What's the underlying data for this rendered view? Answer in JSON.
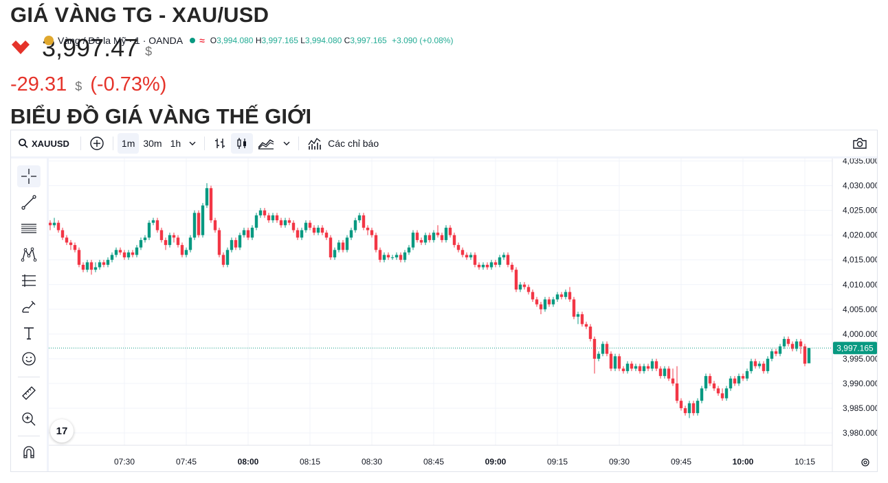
{
  "header": {
    "title": "GIÁ VÀNG TG - XAU/USD",
    "price": "3,997.47",
    "price_unit": "$",
    "change": "-29.31",
    "change_unit": "$",
    "change_pct": "(-0.73%)",
    "section_title": "BIỂU ĐỒ GIÁ VÀNG THẾ GIỚI"
  },
  "toolbar": {
    "symbol": "XAUUSD",
    "intervals": [
      "1m",
      "30m",
      "1h"
    ],
    "active_interval": "1m",
    "indicators_label": "Các chỉ báo"
  },
  "legend": {
    "name": "Vàng / Đô la Mỹ · 1 · OANDA",
    "o_label": "O",
    "o": "3,994.080",
    "h_label": "H",
    "h": "3,997.165",
    "l_label": "L",
    "l": "3,994.080",
    "c_label": "C",
    "c": "3,997.165",
    "change": "+3.090 (+0.08%)"
  },
  "colors": {
    "up": "#089981",
    "down": "#f23645",
    "accent": "#2962ff"
  },
  "chart_data": {
    "type": "candlestick",
    "interval": "1m",
    "x_start": "07:12",
    "x_tick_labels": [
      "07:30",
      "07:45",
      "08:00",
      "08:15",
      "08:30",
      "08:45",
      "09:00",
      "09:15",
      "09:30",
      "09:45",
      "10:00",
      "10:15"
    ],
    "y_tick_labels": [
      "4,035.000",
      "4,030.000",
      "4,025.000",
      "4,020.000",
      "4,015.000",
      "4,010.000",
      "4,005.000",
      "4,000.000",
      "3,995.000",
      "3,990.000",
      "3,985.000",
      "3,980.000"
    ],
    "ylim": [
      3977.5,
      4035.5
    ],
    "last_price": 3997.165,
    "last_price_label": "3,997.165",
    "candles": [
      [
        4022.5,
        4022.0,
        4023.0,
        4021.0
      ],
      [
        4022.0,
        4022.5,
        4023.5,
        4021.5
      ],
      [
        4022.5,
        4021.0,
        4023.0,
        4020.5
      ],
      [
        4021.0,
        4019.5,
        4021.5,
        4019.0
      ],
      [
        4019.5,
        4018.5,
        4020.0,
        4018.0
      ],
      [
        4018.5,
        4018.0,
        4019.0,
        4017.0
      ],
      [
        4018.0,
        4017.0,
        4018.5,
        4016.5
      ],
      [
        4017.0,
        4014.0,
        4017.5,
        4013.5
      ],
      [
        4014.0,
        4013.0,
        4014.5,
        4012.5
      ],
      [
        4013.0,
        4014.5,
        4015.0,
        4012.5
      ],
      [
        4014.5,
        4013.0,
        4015.0,
        4012.0
      ],
      [
        4013.0,
        4013.5,
        4014.5,
        4012.5
      ],
      [
        4013.5,
        4014.5,
        4015.0,
        4013.0
      ],
      [
        4014.5,
        4014.0,
        4015.0,
        4013.5
      ],
      [
        4014.0,
        4015.0,
        4015.5,
        4013.5
      ],
      [
        4015.0,
        4016.0,
        4016.5,
        4014.5
      ],
      [
        4016.0,
        4017.0,
        4017.5,
        4015.5
      ],
      [
        4017.0,
        4016.5,
        4017.5,
        4016.0
      ],
      [
        4016.5,
        4015.5,
        4017.0,
        4015.0
      ],
      [
        4015.5,
        4016.5,
        4017.0,
        4015.0
      ],
      [
        4016.5,
        4016.0,
        4017.0,
        4015.5
      ],
      [
        4016.0,
        4017.5,
        4018.0,
        4015.5
      ],
      [
        4017.5,
        4019.0,
        4019.5,
        4017.0
      ],
      [
        4019.0,
        4019.5,
        4020.0,
        4018.5
      ],
      [
        4019.5,
        4022.5,
        4023.0,
        4019.0
      ],
      [
        4022.5,
        4023.0,
        4023.5,
        4022.0
      ],
      [
        4023.0,
        4021.0,
        4023.5,
        4020.5
      ],
      [
        4021.0,
        4019.0,
        4021.5,
        4018.5
      ],
      [
        4019.0,
        4018.0,
        4019.5,
        4017.0
      ],
      [
        4018.0,
        4020.0,
        4020.5,
        4017.5
      ],
      [
        4020.0,
        4019.5,
        4020.5,
        4018.5
      ],
      [
        4019.5,
        4018.0,
        4020.0,
        4017.5
      ],
      [
        4018.0,
        4016.0,
        4018.5,
        4015.5
      ],
      [
        4016.0,
        4017.0,
        4017.5,
        4015.5
      ],
      [
        4017.0,
        4019.5,
        4020.0,
        4016.5
      ],
      [
        4019.5,
        4024.5,
        4025.0,
        4019.0
      ],
      [
        4024.5,
        4020.0,
        4025.0,
        4019.5
      ],
      [
        4020.0,
        4026.0,
        4026.5,
        4019.5
      ],
      [
        4026.0,
        4029.5,
        4030.5,
        4025.5
      ],
      [
        4029.5,
        4023.0,
        4030.0,
        4022.5
      ],
      [
        4023.0,
        4021.0,
        4023.5,
        4020.5
      ],
      [
        4021.0,
        4016.0,
        4021.5,
        4015.5
      ],
      [
        4016.0,
        4014.0,
        4016.5,
        4013.5
      ],
      [
        4014.0,
        4017.0,
        4017.5,
        4013.5
      ],
      [
        4017.0,
        4019.0,
        4019.5,
        4016.5
      ],
      [
        4019.0,
        4017.5,
        4019.5,
        4017.0
      ],
      [
        4017.5,
        4020.0,
        4020.5,
        4017.0
      ],
      [
        4020.0,
        4021.0,
        4021.5,
        4019.5
      ],
      [
        4021.0,
        4019.5,
        4021.5,
        4019.0
      ],
      [
        4019.5,
        4021.5,
        4022.0,
        4019.0
      ],
      [
        4021.5,
        4024.0,
        4024.5,
        4021.0
      ],
      [
        4024.0,
        4025.0,
        4025.5,
        4023.5
      ],
      [
        4025.0,
        4024.0,
        4025.5,
        4023.5
      ],
      [
        4024.0,
        4023.0,
        4024.5,
        4022.5
      ],
      [
        4023.0,
        4024.0,
        4024.5,
        4022.5
      ],
      [
        4024.0,
        4023.0,
        4024.5,
        4022.5
      ],
      [
        4023.0,
        4022.0,
        4023.5,
        4021.5
      ],
      [
        4022.0,
        4023.0,
        4023.5,
        4021.5
      ],
      [
        4023.0,
        4022.5,
        4023.5,
        4022.0
      ],
      [
        4022.5,
        4021.0,
        4023.0,
        4020.5
      ],
      [
        4021.0,
        4019.5,
        4021.5,
        4019.0
      ],
      [
        4019.5,
        4021.0,
        4021.5,
        4019.0
      ],
      [
        4021.0,
        4022.5,
        4023.0,
        4020.5
      ],
      [
        4022.5,
        4021.5,
        4023.0,
        4021.0
      ],
      [
        4021.5,
        4020.5,
        4022.0,
        4020.0
      ],
      [
        4020.5,
        4021.5,
        4022.0,
        4020.0
      ],
      [
        4021.5,
        4020.5,
        4022.0,
        4020.0
      ],
      [
        4020.5,
        4019.5,
        4021.0,
        4019.0
      ],
      [
        4019.5,
        4015.5,
        4020.0,
        4015.0
      ],
      [
        4015.5,
        4017.0,
        4017.5,
        4015.0
      ],
      [
        4017.0,
        4018.5,
        4019.0,
        4016.5
      ],
      [
        4018.5,
        4017.0,
        4019.0,
        4016.5
      ],
      [
        4017.0,
        4019.5,
        4020.0,
        4016.5
      ],
      [
        4019.5,
        4021.0,
        4021.5,
        4019.0
      ],
      [
        4021.0,
        4023.0,
        4023.5,
        4020.5
      ],
      [
        4023.0,
        4024.0,
        4024.5,
        4022.5
      ],
      [
        4024.0,
        4021.5,
        4024.5,
        4021.0
      ],
      [
        4021.5,
        4021.0,
        4022.0,
        4020.0
      ],
      [
        4021.0,
        4020.0,
        4021.5,
        4019.5
      ],
      [
        4020.0,
        4017.0,
        4020.5,
        4016.5
      ],
      [
        4017.0,
        4015.0,
        4017.5,
        4014.5
      ],
      [
        4015.0,
        4016.0,
        4016.5,
        4014.5
      ],
      [
        4016.0,
        4015.5,
        4016.5,
        4015.0
      ],
      [
        4015.5,
        4015.5,
        4016.0,
        4015.0
      ],
      [
        4015.5,
        4016.0,
        4016.5,
        4015.0
      ],
      [
        4016.0,
        4015.0,
        4016.5,
        4014.5
      ],
      [
        4015.0,
        4016.5,
        4017.0,
        4014.5
      ],
      [
        4016.5,
        4017.5,
        4018.0,
        4016.0
      ],
      [
        4017.5,
        4020.5,
        4021.0,
        4017.0
      ],
      [
        4020.5,
        4019.0,
        4021.0,
        4018.5
      ],
      [
        4019.0,
        4018.5,
        4019.5,
        4018.0
      ],
      [
        4018.5,
        4020.0,
        4020.5,
        4018.0
      ],
      [
        4020.0,
        4019.0,
        4020.5,
        4018.5
      ],
      [
        4019.0,
        4020.5,
        4021.0,
        4018.5
      ],
      [
        4020.5,
        4020.0,
        4022.0,
        4019.5
      ],
      [
        4020.0,
        4019.0,
        4020.5,
        4018.5
      ],
      [
        4019.0,
        4021.5,
        4022.0,
        4018.5
      ],
      [
        4021.5,
        4020.0,
        4022.0,
        4019.5
      ],
      [
        4020.0,
        4018.0,
        4020.5,
        4017.5
      ],
      [
        4018.0,
        4017.0,
        4018.5,
        4016.5
      ],
      [
        4017.0,
        4016.0,
        4017.5,
        4015.5
      ],
      [
        4016.0,
        4015.5,
        4016.5,
        4015.0
      ],
      [
        4015.5,
        4016.0,
        4016.5,
        4015.0
      ],
      [
        4016.0,
        4014.0,
        4016.5,
        4013.5
      ],
      [
        4014.0,
        4013.5,
        4014.5,
        4013.0
      ],
      [
        4013.5,
        4014.0,
        4014.5,
        4013.0
      ],
      [
        4014.0,
        4013.5,
        4014.5,
        4013.0
      ],
      [
        4013.5,
        4014.5,
        4015.0,
        4013.0
      ],
      [
        4014.5,
        4014.0,
        4015.0,
        4013.5
      ],
      [
        4014.0,
        4015.5,
        4016.0,
        4013.5
      ],
      [
        4015.5,
        4016.0,
        4016.5,
        4015.0
      ],
      [
        4016.0,
        4014.0,
        4016.5,
        4013.5
      ],
      [
        4014.0,
        4013.0,
        4014.5,
        4012.5
      ],
      [
        4013.0,
        4009.0,
        4013.5,
        4008.5
      ],
      [
        4009.0,
        4010.0,
        4010.5,
        4008.5
      ],
      [
        4010.0,
        4009.5,
        4010.5,
        4009.0
      ],
      [
        4009.5,
        4008.5,
        4010.0,
        4008.0
      ],
      [
        4008.5,
        4007.0,
        4009.0,
        4006.5
      ],
      [
        4007.0,
        4006.0,
        4007.5,
        4005.5
      ],
      [
        4006.0,
        4005.0,
        4006.5,
        4004.0
      ],
      [
        4005.0,
        4007.0,
        4007.5,
        4004.5
      ],
      [
        4007.0,
        4006.0,
        4007.5,
        4005.5
      ],
      [
        4006.0,
        4007.0,
        4007.5,
        4005.5
      ],
      [
        4007.0,
        4008.0,
        4008.5,
        4006.5
      ],
      [
        4008.0,
        4007.5,
        4008.5,
        4007.0
      ],
      [
        4007.5,
        4008.5,
        4009.0,
        4007.0
      ],
      [
        4008.5,
        4007.0,
        4009.5,
        4006.5
      ],
      [
        4007.0,
        4003.5,
        4007.5,
        4003.0
      ],
      [
        4003.5,
        4004.0,
        4004.5,
        4002.0
      ],
      [
        4004.0,
        4002.0,
        4004.5,
        4001.5
      ],
      [
        4002.0,
        4001.5,
        4002.5,
        4001.0
      ],
      [
        4001.5,
        3999.0,
        4002.0,
        3998.5
      ],
      [
        3999.0,
        3995.0,
        3999.5,
        3992.0
      ],
      [
        3995.0,
        3996.0,
        3996.5,
        3994.5
      ],
      [
        3996.0,
        3998.0,
        3998.5,
        3995.5
      ],
      [
        3998.0,
        3996.0,
        3998.5,
        3995.5
      ],
      [
        3996.0,
        3993.0,
        3996.5,
        3992.5
      ],
      [
        3993.0,
        3995.5,
        3996.0,
        3992.5
      ],
      [
        3995.5,
        3993.0,
        3996.0,
        3992.5
      ],
      [
        3993.0,
        3992.5,
        3993.5,
        3992.0
      ],
      [
        3992.5,
        3994.0,
        3994.5,
        3992.0
      ],
      [
        3994.0,
        3993.0,
        3994.5,
        3992.5
      ],
      [
        3993.0,
        3993.5,
        3994.0,
        3992.5
      ],
      [
        3993.5,
        3992.5,
        3994.0,
        3992.0
      ],
      [
        3992.5,
        3993.5,
        3994.0,
        3992.0
      ],
      [
        3993.5,
        3993.0,
        3994.0,
        3992.5
      ],
      [
        3993.0,
        3994.5,
        3995.0,
        3992.5
      ],
      [
        3994.5,
        3993.0,
        3995.0,
        3992.5
      ],
      [
        3993.0,
        3991.5,
        3993.5,
        3991.0
      ],
      [
        3991.5,
        3993.0,
        3993.5,
        3991.0
      ],
      [
        3993.0,
        3991.0,
        3993.5,
        3990.5
      ],
      [
        3991.0,
        3990.0,
        3993.0,
        3989.5
      ],
      [
        3990.0,
        3986.5,
        3993.5,
        3986.0
      ],
      [
        3986.5,
        3985.0,
        3987.0,
        3984.5
      ],
      [
        3985.0,
        3984.0,
        3985.5,
        3983.5
      ],
      [
        3984.0,
        3986.0,
        3986.5,
        3983.0
      ],
      [
        3986.0,
        3984.0,
        3986.5,
        3983.5
      ],
      [
        3984.0,
        3986.5,
        3987.0,
        3983.5
      ],
      [
        3986.5,
        3989.0,
        3989.5,
        3986.0
      ],
      [
        3989.0,
        3991.5,
        3992.0,
        3988.5
      ],
      [
        3991.5,
        3990.0,
        3992.0,
        3989.5
      ],
      [
        3990.0,
        3989.0,
        3990.5,
        3988.5
      ],
      [
        3989.0,
        3988.0,
        3989.5,
        3987.5
      ],
      [
        3988.0,
        3987.0,
        3989.0,
        3986.5
      ],
      [
        3987.0,
        3989.0,
        3989.5,
        3986.5
      ],
      [
        3989.0,
        3991.0,
        3991.5,
        3988.5
      ],
      [
        3991.0,
        3990.0,
        3991.5,
        3989.5
      ],
      [
        3990.0,
        3991.5,
        3992.0,
        3989.5
      ],
      [
        3991.5,
        3991.0,
        3992.0,
        3990.5
      ],
      [
        3991.0,
        3992.5,
        3993.0,
        3990.5
      ],
      [
        3992.5,
        3994.5,
        3995.0,
        3992.0
      ],
      [
        3994.5,
        3993.5,
        3995.0,
        3993.0
      ],
      [
        3993.5,
        3994.0,
        3994.5,
        3993.0
      ],
      [
        3994.0,
        3992.5,
        3994.5,
        3992.0
      ],
      [
        3992.5,
        3995.0,
        3995.5,
        3992.0
      ],
      [
        3995.0,
        3996.5,
        3997.0,
        3994.5
      ],
      [
        3996.5,
        3996.0,
        3997.0,
        3995.5
      ],
      [
        3996.0,
        3997.5,
        3998.0,
        3995.5
      ],
      [
        3997.5,
        3999.0,
        3999.5,
        3997.0
      ],
      [
        3999.0,
        3998.0,
        3999.5,
        3997.5
      ],
      [
        3998.0,
        3997.0,
        3998.5,
        3996.5
      ],
      [
        3997.0,
        3998.5,
        3999.0,
        3996.5
      ],
      [
        3998.5,
        3997.5,
        3999.0,
        3996.0
      ],
      [
        3997.5,
        3994.0,
        3998.0,
        3993.5
      ],
      [
        3994.08,
        3997.165,
        3997.165,
        3994.08
      ]
    ]
  }
}
